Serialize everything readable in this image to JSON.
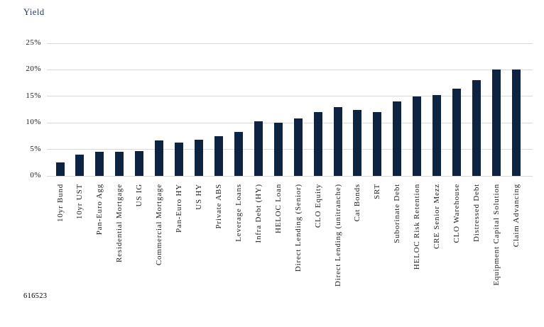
{
  "title": "Yield",
  "footnote": "616523",
  "colors": {
    "bar": "#0e2342",
    "title": "#1f3864",
    "gridline": "#d9d9d9",
    "label": "#1a1a1a"
  },
  "chart_data": {
    "type": "bar",
    "title": "Yield",
    "ylabel": "Yield",
    "xlabel": "",
    "ylim": [
      0,
      25
    ],
    "yticks": [
      {
        "label": "0%",
        "value": 0
      },
      {
        "label": "5%",
        "value": 5
      },
      {
        "label": "10%",
        "value": 10
      },
      {
        "label": "15%",
        "value": 15
      },
      {
        "label": "20%",
        "value": 20
      },
      {
        "label": "25%",
        "value": 25
      }
    ],
    "grid": true,
    "legend": "none",
    "categories": [
      "10yr Bund",
      "10yr UST",
      "Pan-Euro Agg",
      "Residential Mortgage",
      "US IG",
      "Commercial Mortgage",
      "Pan-Euro HY",
      "US HY",
      "Private ABS",
      "Leverage Loans",
      "Infra Debt (HY)",
      "HELOC Loan",
      "Direct Lending (Senior)",
      "CLO Equity",
      "Direct Lending (unitranche)",
      "Cat Bonds",
      "SRT",
      "Suborinate Debt",
      "HELOC Risk Retention",
      "CRE Senior Mezz",
      "CLO Warehouse",
      "Distressed Debt",
      "Equipment Capital Solution",
      "Claim Advancing"
    ],
    "values": [
      2.5,
      4.0,
      4.5,
      4.5,
      4.7,
      6.7,
      6.3,
      6.8,
      7.5,
      8.3,
      10.3,
      10.0,
      10.8,
      12.0,
      13.0,
      12.5,
      12.0,
      14.0,
      15.0,
      15.2,
      16.5,
      18.0,
      20.0,
      20.0
    ]
  }
}
